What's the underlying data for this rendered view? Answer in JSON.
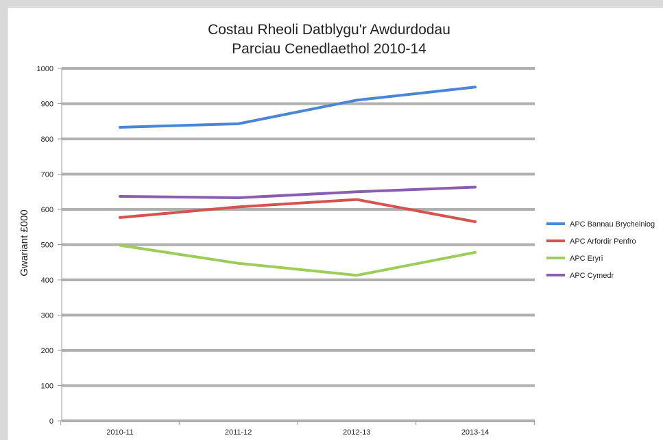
{
  "chart_data": {
    "type": "line",
    "title": "Costau Rheoli Datblygu'r Awdurdodau",
    "subtitle": "Parciau Cenedlaethol 2010-14",
    "xlabel": "",
    "ylabel": "Gwariant £000",
    "categories": [
      "2010-11",
      "2011-12",
      "2012-13",
      "2013-14"
    ],
    "ylim": [
      0,
      1000
    ],
    "yticks": [
      0,
      100,
      200,
      300,
      400,
      500,
      600,
      700,
      800,
      900,
      1000
    ],
    "grid": true,
    "legend_position": "right",
    "series": [
      {
        "name": "APC Bannau Brycheiniog",
        "color": "#4a86d8",
        "values": [
          833,
          843,
          910,
          947
        ]
      },
      {
        "name": "APC Arfordir Penfro",
        "color": "#d9514e",
        "values": [
          577,
          607,
          628,
          565
        ]
      },
      {
        "name": "APC Eryri",
        "color": "#9ccd5a",
        "values": [
          498,
          447,
          413,
          478
        ]
      },
      {
        "name": "APC Cymedr",
        "color": "#8a5db0",
        "values": [
          637,
          633,
          650,
          663
        ]
      }
    ]
  }
}
